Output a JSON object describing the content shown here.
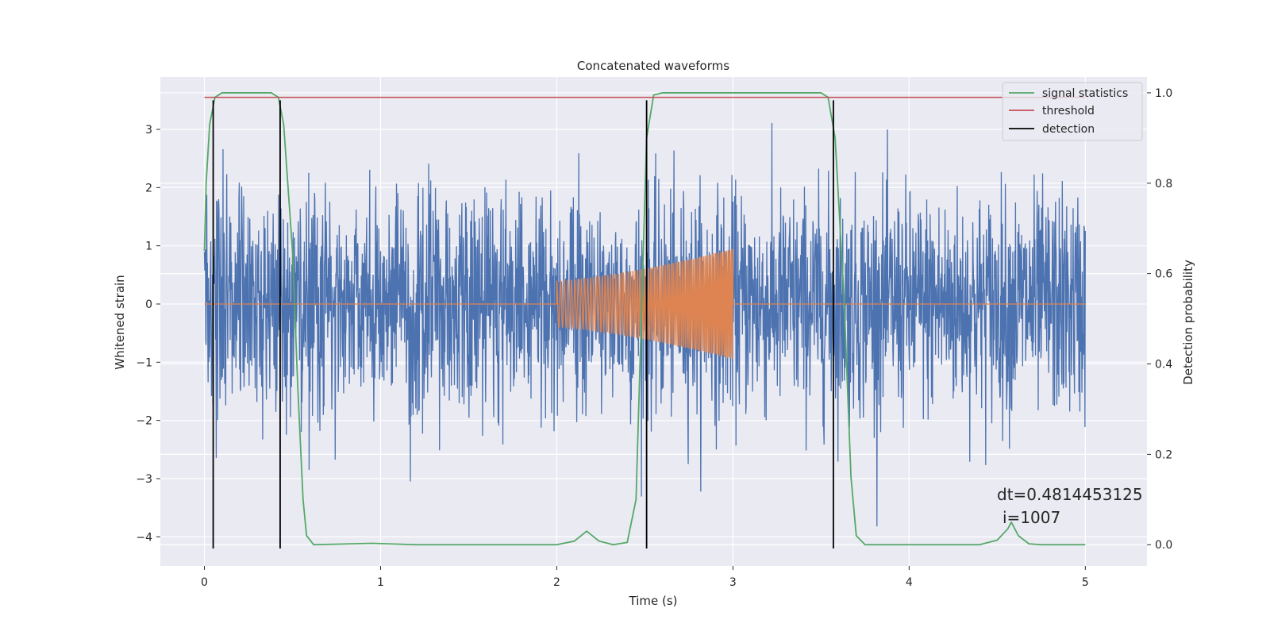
{
  "chart_data": {
    "type": "line",
    "title": "Concatenated waveforms",
    "xlabel": "Time (s)",
    "ylabel": "Whitened strain",
    "y2label": "Detection probability",
    "xlim": [
      -0.25,
      5.35
    ],
    "ylim": [
      -4.5,
      3.9
    ],
    "y2lim": [
      -0.047,
      1.035
    ],
    "x_ticks": [
      "0",
      "1",
      "2",
      "3",
      "4",
      "5"
    ],
    "x_tick_values": [
      0,
      1,
      2,
      3,
      4,
      5
    ],
    "y_ticks": [
      "−4",
      "−3",
      "−2",
      "−1",
      "0",
      "1",
      "2",
      "3"
    ],
    "y_tick_values": [
      -4,
      -3,
      -2,
      -1,
      0,
      1,
      2,
      3
    ],
    "y2_ticks": [
      "0.0",
      "0.2",
      "0.4",
      "0.6",
      "0.8",
      "1.0"
    ],
    "y2_tick_values": [
      0.0,
      0.2,
      0.4,
      0.6,
      0.8,
      1.0
    ],
    "grid": true,
    "legend_position": "top-right",
    "series": [
      {
        "name": "",
        "axis": "left",
        "color": "#4c72b0",
        "description_kind": "whitened strain noise",
        "x_range": [
          0,
          5
        ],
        "amplitude_range": [
          -4.2,
          3.5
        ]
      },
      {
        "name": "",
        "axis": "left",
        "color": "#dd8452",
        "description_kind": "injected chirp",
        "x_range": [
          0,
          5
        ],
        "chirp_interval": [
          2.0,
          3.0
        ],
        "chirp_amplitude_start": 0.4,
        "chirp_amplitude_end": 0.95
      },
      {
        "name": "signal statistics",
        "axis": "right",
        "color": "#55a868",
        "points": [
          [
            0.0,
            0.65
          ],
          [
            0.01,
            0.8
          ],
          [
            0.03,
            0.93
          ],
          [
            0.06,
            0.99
          ],
          [
            0.1,
            1.0
          ],
          [
            0.38,
            1.0
          ],
          [
            0.42,
            0.99
          ],
          [
            0.45,
            0.93
          ],
          [
            0.5,
            0.65
          ],
          [
            0.53,
            0.35
          ],
          [
            0.56,
            0.1
          ],
          [
            0.58,
            0.02
          ],
          [
            0.62,
            0.0
          ],
          [
            0.95,
            0.003
          ],
          [
            1.2,
            0.0
          ],
          [
            2.0,
            0.0
          ],
          [
            2.1,
            0.008
          ],
          [
            2.17,
            0.03
          ],
          [
            2.24,
            0.008
          ],
          [
            2.32,
            0.0
          ],
          [
            2.4,
            0.005
          ],
          [
            2.45,
            0.1
          ],
          [
            2.48,
            0.5
          ],
          [
            2.51,
            0.9
          ],
          [
            2.55,
            0.995
          ],
          [
            2.6,
            1.0
          ],
          [
            3.5,
            1.0
          ],
          [
            3.54,
            0.99
          ],
          [
            3.58,
            0.9
          ],
          [
            3.63,
            0.55
          ],
          [
            3.67,
            0.15
          ],
          [
            3.7,
            0.02
          ],
          [
            3.75,
            0.0
          ],
          [
            4.4,
            0.0
          ],
          [
            4.5,
            0.01
          ],
          [
            4.56,
            0.035
          ],
          [
            4.58,
            0.05
          ],
          [
            4.62,
            0.02
          ],
          [
            4.68,
            0.002
          ],
          [
            4.75,
            0.0
          ],
          [
            5.0,
            0.0
          ]
        ]
      },
      {
        "name": "threshold",
        "axis": "right",
        "color": "#c44e52",
        "value": 0.99,
        "x_range": [
          0,
          5
        ]
      },
      {
        "name": "detection",
        "axis": "left",
        "color": "#000000",
        "x": [
          0.05,
          0.43,
          2.51,
          3.57
        ],
        "y_range": [
          -4.2,
          3.5
        ]
      }
    ],
    "annotation": {
      "line1": "dt=0.4814453125",
      "line2": "i=1007"
    }
  }
}
